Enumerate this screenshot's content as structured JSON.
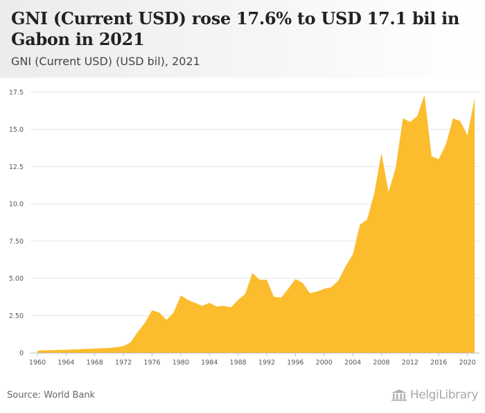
{
  "header": {
    "title": "GNI (Current USD) rose 17.6% to USD 17.1 bil in Gabon in 2021",
    "subtitle": "GNI (Current USD) (USD bil), 2021"
  },
  "footer": {
    "source": "Source: World Bank",
    "logo_text": "HelgiLibrary"
  },
  "colors": {
    "area": "#fbbd2e",
    "grid": "#e4e4e4",
    "axis": "#bbbbbb"
  },
  "chart_data": {
    "type": "area",
    "title": "GNI (Current USD) rose 17.6% to USD 17.1 bil in Gabon in 2021",
    "subtitle": "GNI (Current USD) (USD bil), 2021",
    "xlabel": "",
    "ylabel": "",
    "ylim": [
      0,
      17.5
    ],
    "xlim": [
      1960,
      2021
    ],
    "grid": true,
    "legend": "none",
    "y_ticks": [
      "0",
      "2.50",
      "5.00",
      "7.50",
      "10.0",
      "12.5",
      "15.0",
      "17.5"
    ],
    "y_tick_values": [
      0,
      2.5,
      5,
      7.5,
      10,
      12.5,
      15,
      17.5
    ],
    "x_ticks": [
      "1960",
      "1964",
      "1968",
      "1972",
      "1976",
      "1980",
      "1984",
      "1988",
      "1992",
      "1996",
      "2000",
      "2004",
      "2008",
      "2012",
      "2016",
      "2020"
    ],
    "x_tick_values": [
      1960,
      1964,
      1968,
      1972,
      1976,
      1980,
      1984,
      1988,
      1992,
      1996,
      2000,
      2004,
      2008,
      2012,
      2016,
      2020
    ],
    "x": [
      1960,
      1961,
      1962,
      1963,
      1964,
      1965,
      1966,
      1967,
      1968,
      1969,
      1970,
      1971,
      1972,
      1973,
      1974,
      1975,
      1976,
      1977,
      1978,
      1979,
      1980,
      1981,
      1982,
      1983,
      1984,
      1985,
      1986,
      1987,
      1988,
      1989,
      1990,
      1991,
      1992,
      1993,
      1994,
      1995,
      1996,
      1997,
      1998,
      1999,
      2000,
      2001,
      2002,
      2003,
      2004,
      2005,
      2006,
      2007,
      2008,
      2009,
      2010,
      2011,
      2012,
      2013,
      2014,
      2015,
      2016,
      2017,
      2018,
      2019,
      2020,
      2021
    ],
    "values": [
      0.14,
      0.16,
      0.17,
      0.19,
      0.2,
      0.22,
      0.24,
      0.26,
      0.28,
      0.3,
      0.32,
      0.37,
      0.44,
      0.7,
      1.4,
      2.0,
      2.85,
      2.7,
      2.2,
      2.7,
      3.85,
      3.55,
      3.35,
      3.15,
      3.35,
      3.1,
      3.15,
      3.05,
      3.55,
      3.95,
      5.35,
      4.9,
      4.9,
      3.75,
      3.7,
      4.3,
      4.95,
      4.7,
      4.0,
      4.1,
      4.3,
      4.4,
      4.85,
      5.8,
      6.6,
      8.6,
      8.95,
      10.7,
      13.4,
      10.8,
      12.45,
      15.75,
      15.5,
      15.9,
      17.3,
      13.2,
      13.0,
      14.0,
      15.75,
      15.55,
      14.6,
      17.1
    ]
  }
}
